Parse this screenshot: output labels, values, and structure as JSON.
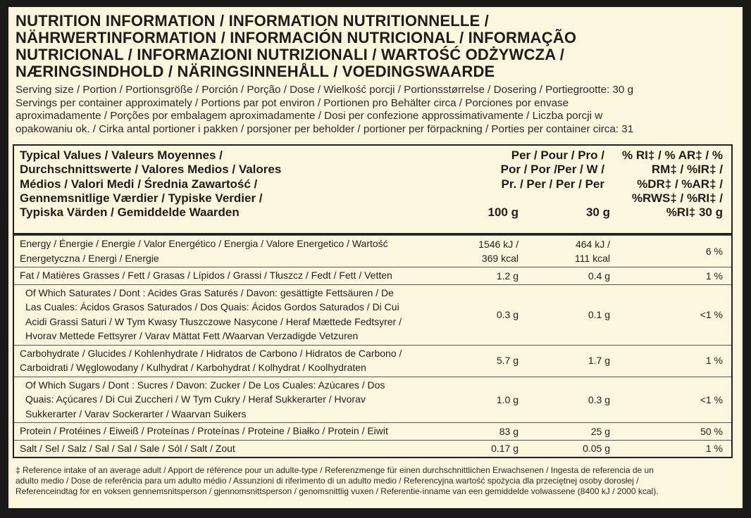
{
  "header": {
    "title_lines": [
      "NUTRITION INFORMATION / INFORMATION  NUTRITIONNELLE /",
      "NÄHRWERTINFORMATION / INFORMACIÓN NUTRICIONAL / INFORMAÇÃO",
      "NUTRICIONAL / INFORMAZIONI NUTRIZIONALI / WARTOŚĆ ODŻYWCZA /",
      "NÆRINGSINDHOLD / NÄRINGSINNEHÅLL / VOEDINGSWAARDE"
    ],
    "serving_lines": [
      "Serving size / Portion / Portionsgröße / Porción / Porção / Dose / Wielkość porcji / Portionsstørrelse / Dosering / Portiegrootte: 30 g",
      "Servings per container approximately / Portions par pot environ / Portionen pro Behälter circa / Porciones por envase",
      "aproximadamente / Porções por embalagem aproximadamente / Dosi per confezione approssimativamente / Liczba porcji w",
      "opakowaniu ok. / Cirka antal portioner i pakken / porsjoner per beholder / portioner per förpackning / Porties per container circa: 31"
    ]
  },
  "table": {
    "head": {
      "name_lines": [
        "Typical Values / Valeurs Moyennes /",
        "Durchschnittswerte / Valores Medios / Valores",
        "Médios / Valori Medi / Średnia Zawartość /",
        "Gennemsnitlige Værdier / Typiske Verdier /",
        "Typiska Värden / Gemiddelde Waarden"
      ],
      "per_lines": [
        "Per / Pour / Pro /",
        "Por / Por /Per / W /",
        "Pr. / Per / Per / Per"
      ],
      "col_100": "100 g",
      "col_30": "30 g",
      "ri_lines": [
        "% RI‡ / % AR‡ / %",
        "RM‡ / %IR‡ /",
        "%DR‡ / %AR‡ /",
        "%RWS‡ / %RI‡ /",
        "%RI‡ 30 g"
      ]
    },
    "rows": [
      {
        "name_lines": [
          "Energy / Énergie / Energie / Valor Energético / Energia / Valore Energetico / Wartość",
          "Energetyczna / Energi / Energie"
        ],
        "per_100": [
          "1546 kJ /",
          "369 kcal"
        ],
        "per_30": [
          "464 kJ /",
          "111 kcal"
        ],
        "ri": "6 %"
      },
      {
        "name_lines": [
          "Fat / Matières Grasses / Fett / Grasas / Lípidos / Grassi / Tłuszcz / Fedt / Fett  / Vetten"
        ],
        "per_100": [
          "1.2 g"
        ],
        "per_30": [
          "0.4 g"
        ],
        "ri": "1 %"
      },
      {
        "name_lines": [
          "Of Which Saturates / Dont : Acides Gras Saturés /  Davon: gesättigte Fettsäuren / De",
          "Las Cuales: Ácidos Grasos Saturados / Dos Quais: Ácidos Gordos Saturados / Di Cui",
          "Acidi Grassi Saturi / W Tym Kwasy Tłuszczowe Nasycone / Heraf Mættede Fedtsyrer /",
          "Hvorav Mettede Fettsyrer / Varav Mättat Fett /Waarvan Verzadigde Vetzuren"
        ],
        "per_100": [
          "0.3 g"
        ],
        "per_30": [
          "0.1 g"
        ],
        "ri": "<1 %",
        "indent": true
      },
      {
        "name_lines": [
          "Carbohydrate / Glucides / Kohlenhydrate / Hidratos de Carbono / Hidratos de Carbono /",
          "Carboidrati / Węglowodany / Kulhydrat / Karbohydrat / Kolhydrat / Koolhydraten"
        ],
        "per_100": [
          "5.7 g"
        ],
        "per_30": [
          "1.7 g"
        ],
        "ri": "1 %"
      },
      {
        "name_lines": [
          "Of Which Sugars / Dont : Sucres / Davon: Zucker / De Los Cuales: Azúcares / Dos",
          "Quais: Açúcares / Di Cui Zuccheri / W Tym Cukry / Heraf Sukkerarter / Hvorav",
          "Sukkerarter / Varav Sockerarter / Waarvan Suikers"
        ],
        "per_100": [
          "1.0 g"
        ],
        "per_30": [
          "0.3 g"
        ],
        "ri": "<1 %",
        "indent": true
      },
      {
        "name_lines": [
          "Protein / Protéines / Eiweiß / Proteínas / Proteínas / Proteine / Białko / Protein / Eiwit"
        ],
        "per_100": [
          "83 g"
        ],
        "per_30": [
          "25 g"
        ],
        "ri": "50 %"
      },
      {
        "name_lines": [
          "Salt / Sel / Salz /  Sal / Sal / Sale / Sól / Salt / Zout"
        ],
        "per_100": [
          "0.17 g"
        ],
        "per_30": [
          "0.05 g"
        ],
        "ri": "1 %"
      }
    ]
  },
  "footer_lines": [
    "‡ Reference intake of an average adult / Apport de référence pour un adulte-type / Referenzmenge für einen durchschnittlichen Erwachsenen / Ingesta de referencia de un",
    "adulto medio / Dose de referência para um adulto médio / Assunzioni di riferimento di un adulto medio / Referencyjna wartość spożycia dla przeciętnej osoby dorosłej /",
    "Referenceindtag for en voksen gennemsnitsperson / gjennomsnittsperson / genomsnittlig vuxen / Referentie-inname van een gemiddelde volwassene (8400 kJ / 2000 kcal)."
  ]
}
